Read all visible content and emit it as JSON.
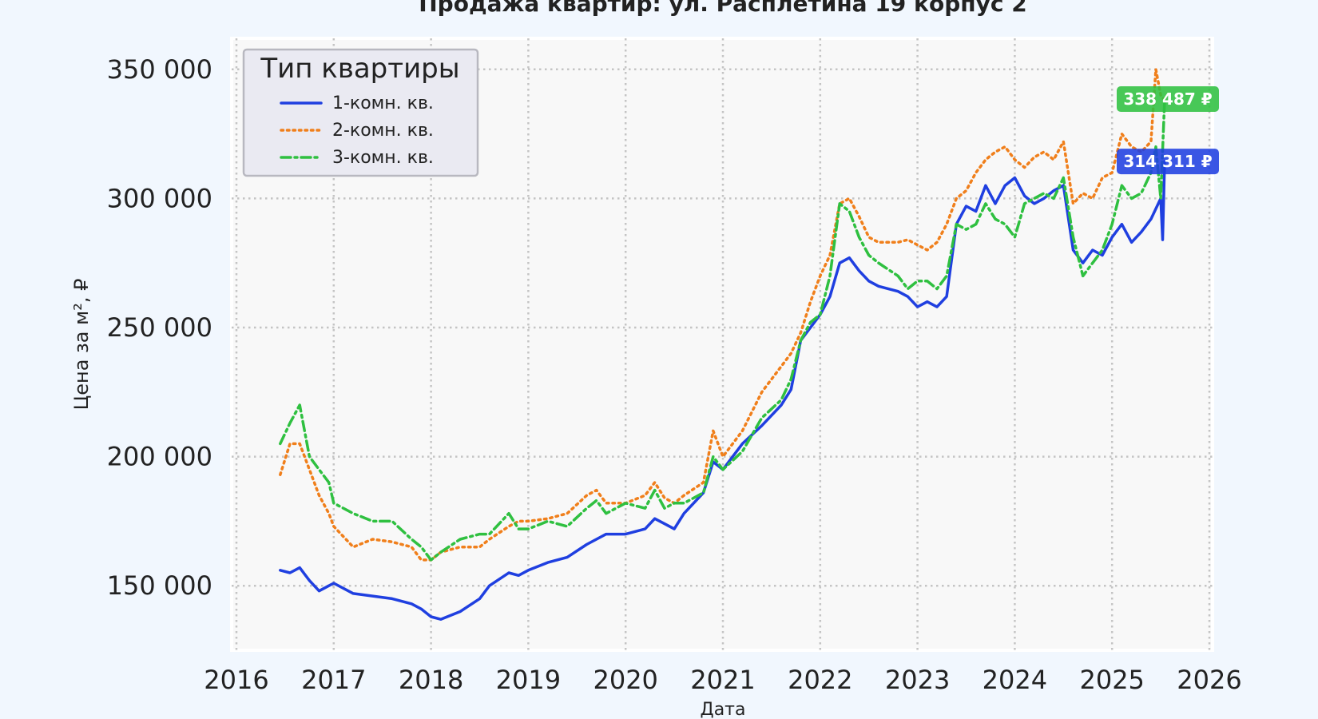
{
  "chart_data": {
    "type": "line",
    "title": "Продажа квартир: ул. Расплетина 19 корпус 2",
    "xlabel": "Дата",
    "ylabel": "Цена за м², ₽",
    "xlim": [
      2016,
      2026
    ],
    "ylim": [
      125000,
      362000
    ],
    "x_ticks": [
      "2016",
      "2017",
      "2018",
      "2019",
      "2020",
      "2021",
      "2022",
      "2023",
      "2024",
      "2025",
      "2026"
    ],
    "y_ticks": [
      "150 000",
      "200 000",
      "250 000",
      "300 000",
      "350 000"
    ],
    "y_tick_values": [
      150000,
      200000,
      250000,
      300000,
      350000
    ],
    "grid": true,
    "legend": {
      "title": "Тип квартиры",
      "position": "top-left"
    },
    "series": [
      {
        "name": "1-комн. кв.",
        "color": "#1f3fe0",
        "dash": "solid",
        "end_label": "314 311 ₽",
        "end_value": 314311,
        "x": [
          2016.45,
          2016.55,
          2016.65,
          2016.75,
          2016.85,
          2016.95,
          2017.0,
          2017.2,
          2017.4,
          2017.6,
          2017.8,
          2017.9,
          2018.0,
          2018.1,
          2018.3,
          2018.5,
          2018.6,
          2018.8,
          2018.9,
          2019.0,
          2019.2,
          2019.4,
          2019.6,
          2019.7,
          2019.8,
          2020.0,
          2020.2,
          2020.3,
          2020.4,
          2020.5,
          2020.6,
          2020.8,
          2020.9,
          2021.0,
          2021.2,
          2021.4,
          2021.6,
          2021.7,
          2021.8,
          2021.9,
          2022.0,
          2022.1,
          2022.2,
          2022.3,
          2022.4,
          2022.5,
          2022.6,
          2022.8,
          2022.9,
          2023.0,
          2023.1,
          2023.2,
          2023.3,
          2023.4,
          2023.5,
          2023.6,
          2023.7,
          2023.8,
          2023.9,
          2024.0,
          2024.1,
          2024.2,
          2024.3,
          2024.4,
          2024.5,
          2024.6,
          2024.7,
          2024.8,
          2024.9,
          2025.0,
          2025.1,
          2025.2,
          2025.3,
          2025.4,
          2025.5,
          2025.52,
          2025.54
        ],
        "y": [
          156000,
          155000,
          157000,
          152000,
          148000,
          150000,
          151000,
          147000,
          146000,
          145000,
          143000,
          141000,
          138000,
          137000,
          140000,
          145000,
          150000,
          155000,
          154000,
          156000,
          159000,
          161000,
          166000,
          168000,
          170000,
          170000,
          172000,
          176000,
          174000,
          172000,
          178000,
          186000,
          198000,
          195000,
          205000,
          212000,
          220000,
          226000,
          245000,
          250000,
          255000,
          262000,
          275000,
          277000,
          272000,
          268000,
          266000,
          264000,
          262000,
          258000,
          260000,
          258000,
          262000,
          290000,
          297000,
          295000,
          305000,
          298000,
          305000,
          308000,
          301000,
          298000,
          300000,
          303000,
          305000,
          280000,
          275000,
          280000,
          278000,
          285000,
          290000,
          283000,
          287000,
          292000,
          300000,
          284000,
          314311
        ]
      },
      {
        "name": "2-комн. кв.",
        "color": "#f07f1b",
        "dash": "dotted",
        "end_label": "",
        "end_value": null,
        "x": [
          2016.45,
          2016.55,
          2016.65,
          2016.75,
          2016.85,
          2016.95,
          2017.0,
          2017.2,
          2017.4,
          2017.6,
          2017.8,
          2017.9,
          2018.0,
          2018.1,
          2018.3,
          2018.5,
          2018.6,
          2018.8,
          2018.9,
          2019.0,
          2019.2,
          2019.4,
          2019.6,
          2019.7,
          2019.8,
          2020.0,
          2020.2,
          2020.3,
          2020.4,
          2020.5,
          2020.6,
          2020.8,
          2020.9,
          2021.0,
          2021.2,
          2021.4,
          2021.6,
          2021.7,
          2021.8,
          2021.9,
          2022.0,
          2022.1,
          2022.2,
          2022.3,
          2022.4,
          2022.5,
          2022.6,
          2022.8,
          2022.9,
          2023.0,
          2023.1,
          2023.2,
          2023.3,
          2023.4,
          2023.5,
          2023.6,
          2023.7,
          2023.8,
          2023.9,
          2024.0,
          2024.1,
          2024.2,
          2024.3,
          2024.4,
          2024.5,
          2024.6,
          2024.7,
          2024.8,
          2024.9,
          2025.0,
          2025.1,
          2025.2,
          2025.3,
          2025.4,
          2025.45,
          2025.5,
          2025.54
        ],
        "y": [
          193000,
          205000,
          205000,
          195000,
          185000,
          178000,
          173000,
          165000,
          168000,
          167000,
          165000,
          160000,
          160000,
          163000,
          165000,
          165000,
          168000,
          173000,
          175000,
          175000,
          176000,
          178000,
          185000,
          187000,
          182000,
          182000,
          185000,
          190000,
          184000,
          182000,
          185000,
          190000,
          210000,
          200000,
          210000,
          225000,
          235000,
          240000,
          248000,
          260000,
          270000,
          278000,
          298000,
          300000,
          293000,
          285000,
          283000,
          283000,
          284000,
          282000,
          280000,
          283000,
          290000,
          300000,
          303000,
          310000,
          315000,
          318000,
          320000,
          315000,
          312000,
          316000,
          318000,
          315000,
          322000,
          298000,
          302000,
          300000,
          308000,
          310000,
          325000,
          320000,
          318000,
          322000,
          350000,
          340000,
          338000
        ]
      },
      {
        "name": "3-комн. кв.",
        "color": "#2fc040",
        "dash": "dashdot",
        "end_label": "338 487 ₽",
        "end_value": 338487,
        "x": [
          2016.45,
          2016.55,
          2016.65,
          2016.75,
          2016.85,
          2016.95,
          2017.0,
          2017.2,
          2017.4,
          2017.6,
          2017.8,
          2017.9,
          2018.0,
          2018.1,
          2018.3,
          2018.5,
          2018.6,
          2018.8,
          2018.9,
          2019.0,
          2019.2,
          2019.4,
          2019.6,
          2019.7,
          2019.8,
          2020.0,
          2020.2,
          2020.3,
          2020.4,
          2020.5,
          2020.6,
          2020.8,
          2020.9,
          2021.0,
          2021.2,
          2021.4,
          2021.6,
          2021.7,
          2021.8,
          2021.9,
          2022.0,
          2022.1,
          2022.2,
          2022.3,
          2022.4,
          2022.5,
          2022.6,
          2022.8,
          2022.9,
          2023.0,
          2023.1,
          2023.2,
          2023.3,
          2023.4,
          2023.5,
          2023.6,
          2023.7,
          2023.8,
          2023.9,
          2024.0,
          2024.1,
          2024.2,
          2024.3,
          2024.4,
          2024.5,
          2024.6,
          2024.7,
          2024.8,
          2024.9,
          2025.0,
          2025.1,
          2025.2,
          2025.3,
          2025.4,
          2025.45,
          2025.5,
          2025.54
        ],
        "y": [
          205000,
          213000,
          220000,
          200000,
          195000,
          190000,
          182000,
          178000,
          175000,
          175000,
          168000,
          165000,
          160000,
          163000,
          168000,
          170000,
          170000,
          178000,
          172000,
          172000,
          175000,
          173000,
          180000,
          183000,
          178000,
          182000,
          180000,
          187000,
          180000,
          182000,
          182000,
          186000,
          200000,
          195000,
          202000,
          215000,
          222000,
          230000,
          245000,
          252000,
          255000,
          270000,
          298000,
          295000,
          285000,
          278000,
          275000,
          270000,
          265000,
          268000,
          268000,
          265000,
          270000,
          290000,
          288000,
          290000,
          298000,
          292000,
          290000,
          285000,
          298000,
          300000,
          302000,
          300000,
          308000,
          285000,
          270000,
          275000,
          280000,
          290000,
          305000,
          300000,
          302000,
          310000,
          320000,
          300000,
          338487
        ]
      }
    ]
  }
}
